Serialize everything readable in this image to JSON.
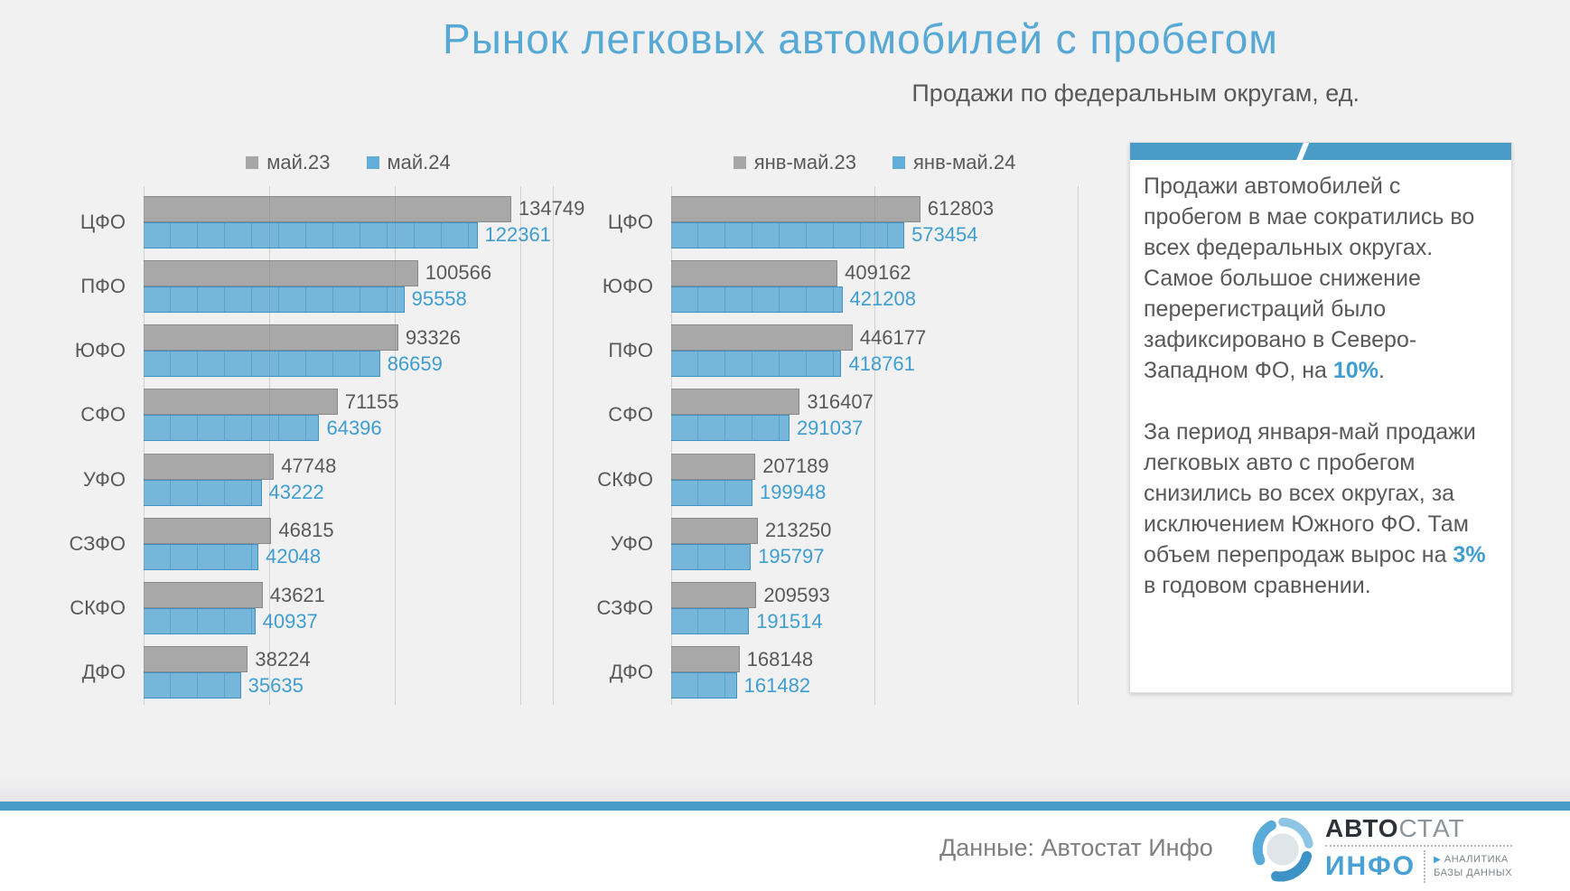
{
  "title": "Рынок легковых автомобилей с пробегом",
  "subtitle": "Продажи по федеральным округам, ед.",
  "colors": {
    "accent_blue": "#4a9cc8",
    "title_blue": "#56a8d5",
    "bar_gray": "#a8a8a8",
    "bar_blue": "#75b6da",
    "value_blue": "#3e9dd1",
    "text_gray": "#595959"
  },
  "chart_data": [
    {
      "type": "bar",
      "orientation": "horizontal",
      "legend_position": "top",
      "grid": true,
      "xlabel": "",
      "ylabel": "",
      "xlim": [
        0,
        150000
      ],
      "categories": [
        "ЦФО",
        "ПФО",
        "ЮФО",
        "СФО",
        "УФО",
        "СЗФО",
        "СКФО",
        "ДФО"
      ],
      "series": [
        {
          "name": "май.23",
          "color": "#a8a8a8",
          "values": [
            134749,
            100566,
            93326,
            71155,
            47748,
            46815,
            43621,
            38224
          ]
        },
        {
          "name": "май.24",
          "color": "#75b6da",
          "values": [
            122361,
            95558,
            86659,
            64396,
            43222,
            42048,
            40937,
            35635
          ]
        }
      ]
    },
    {
      "type": "bar",
      "orientation": "horizontal",
      "legend_position": "top",
      "grid": true,
      "xlabel": "",
      "ylabel": "",
      "xlim": [
        0,
        1000000
      ],
      "categories": [
        "ЦФО",
        "ЮФО",
        "ПФО",
        "СФО",
        "СКФО",
        "УФО",
        "СЗФО",
        "ДФО"
      ],
      "series": [
        {
          "name": "янв-май.23",
          "color": "#a8a8a8",
          "values": [
            612803,
            409162,
            446177,
            316407,
            207189,
            213250,
            209593,
            168148
          ]
        },
        {
          "name": "янв-май.24",
          "color": "#75b6da",
          "values": [
            573454,
            421208,
            418761,
            291037,
            199948,
            195797,
            191514,
            161482
          ]
        }
      ]
    }
  ],
  "info_card": {
    "paragraphs": [
      {
        "segments": [
          {
            "text": "Продажи автомобилей с пробегом в мае сократились во всех федеральных округах. Самое большое снижение перерегистраций было зафиксировано в Северо-Западном ФО, на "
          },
          {
            "text": "10%",
            "highlight": true
          },
          {
            "text": "."
          }
        ]
      },
      {
        "segments": [
          {
            "text": "За период января-май продажи легковых авто с пробегом снизились во всех округах, за исключением Южного ФО. Там объем перепродаж вырос на "
          },
          {
            "text": "3%",
            "highlight": true
          },
          {
            "text": " в годовом сравнении."
          }
        ]
      }
    ]
  },
  "footer": {
    "source": "Данные: Автостат Инфо",
    "logo": {
      "part_dark": "АВТО",
      "part_light": "СТАТ",
      "info": "ИНФО",
      "tag_line1": "АНАЛИТИКА",
      "tag_line2": "БАЗЫ ДАННЫХ"
    }
  }
}
